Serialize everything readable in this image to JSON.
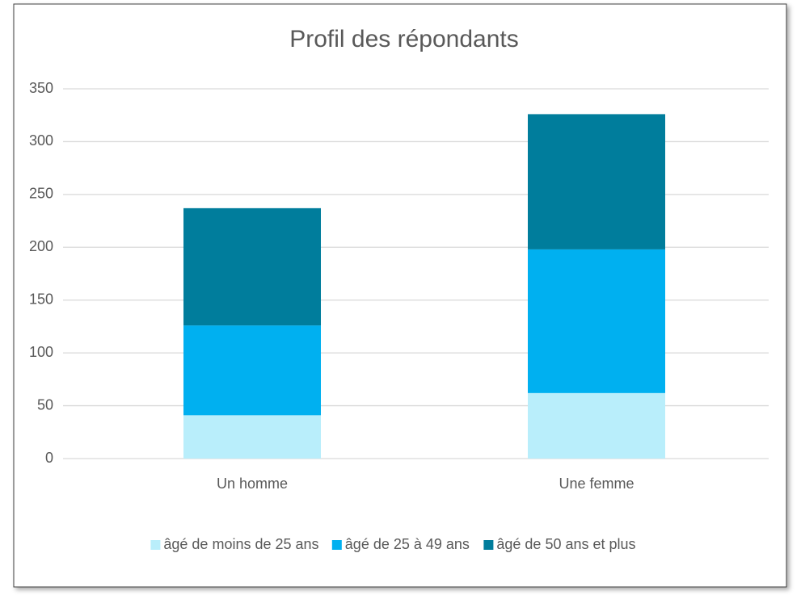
{
  "chart_data": {
    "type": "stacked_bar",
    "title": "Profil des répondants",
    "categories": [
      "Un homme",
      "Une femme"
    ],
    "series": [
      {
        "name": "âgé de moins de 25 ans",
        "color": "#b9eefb",
        "values": [
          41,
          62
        ]
      },
      {
        "name": "âgé de 25 à 49 ans",
        "color": "#00b0f0",
        "values": [
          85,
          136
        ]
      },
      {
        "name": "âgé de 50 ans et plus",
        "color": "#007d9c",
        "values": [
          111,
          128
        ]
      }
    ],
    "ylim": [
      0,
      350
    ],
    "yticks": [
      0,
      50,
      100,
      150,
      200,
      250,
      300,
      350
    ],
    "grid": true,
    "legend": "bottom"
  }
}
